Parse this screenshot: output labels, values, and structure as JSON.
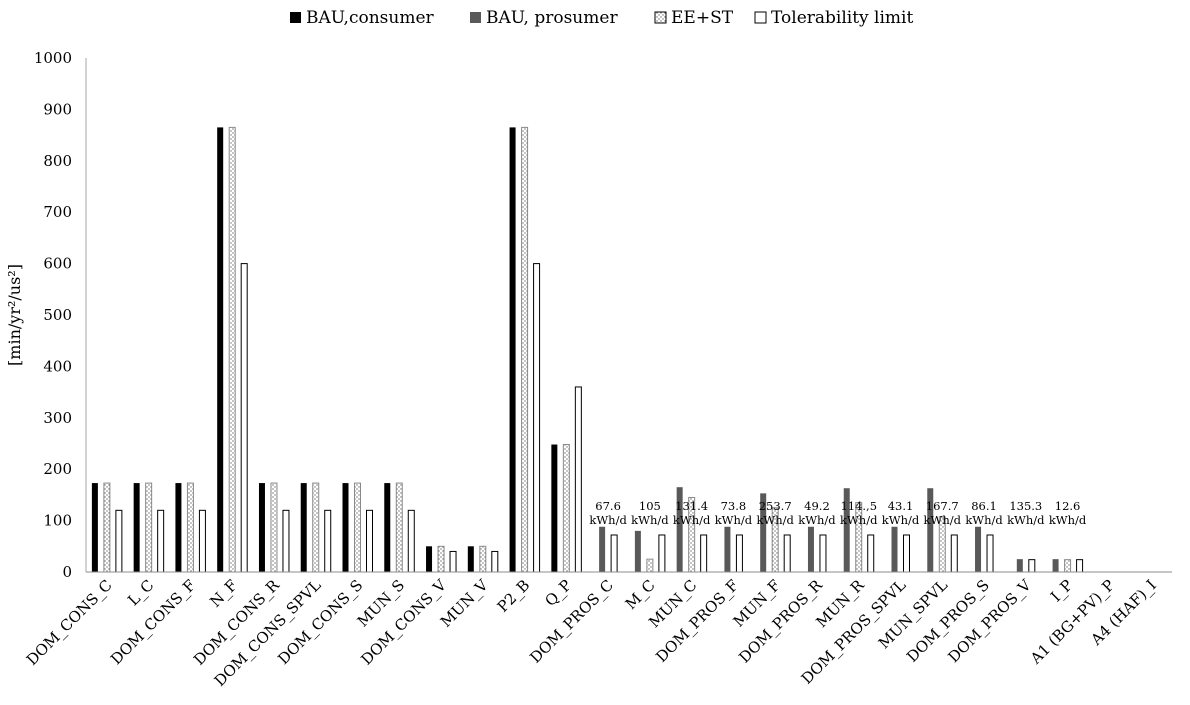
{
  "chart_data": {
    "type": "bar",
    "title": "",
    "xlabel": "",
    "ylabel": "[min/yr²/us²]",
    "ylim": [
      0,
      1000
    ],
    "yticks": [
      0,
      100,
      200,
      300,
      400,
      500,
      600,
      700,
      800,
      900,
      1000
    ],
    "grid": false,
    "legend_position": "top",
    "categories": [
      "DOM_CONS_C",
      "L_C",
      "DOM_CONS_F",
      "N_F",
      "DOM_CONS_R",
      "DOM_CONS_SPVL",
      "DOM_CONS_S",
      "MUN_S",
      "DOM_CONS_V",
      "MUN_V",
      "P2_B",
      "Q_P",
      "DOM_PROS_C",
      "M_C",
      "MUN_C",
      "DOM_PROS_F",
      "MUN_F",
      "DOM_PROS_R",
      "MUN_R",
      "DOM_PROS_SPVL",
      "MUN_SPVL",
      "DOM_PROS_S",
      "DOM_PROS_V",
      "I_P",
      "A1 (BG+PV)_P",
      "A4 (HAF)_I"
    ],
    "series": [
      {
        "name": "BAU,consumer",
        "color": "#000000",
        "pattern": "solid",
        "values": [
          173,
          173,
          173,
          865,
          173,
          173,
          173,
          173,
          50,
          50,
          865,
          248,
          null,
          null,
          null,
          null,
          null,
          null,
          null,
          null,
          null,
          null,
          null,
          null,
          null,
          null
        ]
      },
      {
        "name": "BAU, prosumer",
        "color": "#595959",
        "pattern": "solid",
        "values": [
          null,
          null,
          null,
          null,
          null,
          null,
          null,
          null,
          null,
          null,
          null,
          null,
          88,
          80,
          165,
          88,
          153,
          88,
          163,
          88,
          163,
          88,
          25,
          25,
          null,
          null
        ]
      },
      {
        "name": "EE+ST",
        "color": "#9a9a9a",
        "pattern": "dotted",
        "values": [
          173,
          173,
          173,
          865,
          173,
          173,
          173,
          173,
          50,
          50,
          865,
          248,
          null,
          25,
          145,
          null,
          125,
          null,
          135,
          null,
          107,
          null,
          null,
          24,
          null,
          null
        ]
      },
      {
        "name": "Tolerability limit",
        "color": "#ffffff",
        "pattern": "hollow",
        "values": [
          120,
          120,
          120,
          600,
          120,
          120,
          120,
          120,
          40,
          40,
          600,
          360,
          72,
          72,
          72,
          72,
          72,
          72,
          72,
          72,
          72,
          72,
          24,
          24,
          null,
          null
        ]
      }
    ],
    "annotations": [
      {
        "category": "DOM_PROS_C",
        "value": "67.6",
        "unit": "kWh/d"
      },
      {
        "category": "M_C",
        "value": "105",
        "unit": "kWh/d"
      },
      {
        "category": "MUN_C",
        "value": "131.4",
        "unit": "kWh/d"
      },
      {
        "category": "DOM_PROS_F",
        "value": "73.8",
        "unit": "kWh/d"
      },
      {
        "category": "MUN_F",
        "value": "253.7",
        "unit": "kWh/d"
      },
      {
        "category": "DOM_PROS_R",
        "value": "49.2",
        "unit": "kWh/d"
      },
      {
        "category": "MUN_R",
        "value": "114.,5",
        "unit": "kWh/d"
      },
      {
        "category": "DOM_PROS_SPVL",
        "value": "43.1",
        "unit": "kWh/d"
      },
      {
        "category": "MUN_SPVL",
        "value": "167.7",
        "unit": "kWh/d"
      },
      {
        "category": "DOM_PROS_S",
        "value": "86.1",
        "unit": "kWh/d"
      },
      {
        "category": "DOM_PROS_V",
        "value": "135.3",
        "unit": "kWh/d"
      },
      {
        "category": "I_P",
        "value": "12.6",
        "unit": "kWh/d"
      }
    ]
  }
}
